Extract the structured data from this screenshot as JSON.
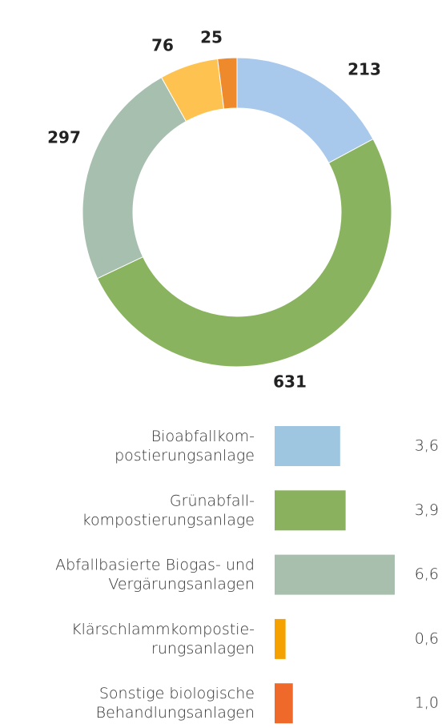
{
  "chart_data": [
    {
      "type": "donut",
      "values": [
        213,
        631,
        297,
        76,
        25
      ],
      "colors": [
        "#a8c8ec",
        "#8ab360",
        "#a7bfae",
        "#fdc24f",
        "#ee8a2c"
      ]
    },
    {
      "type": "hbar",
      "categories": [
        "Bioabfallkom-\npostierungsanlage",
        "Grünabfall-\nkompostierungsanlage",
        "Abfallbasierte Biogas- und\nVergärungsanlagen",
        "Klärschlammkompostie-\nrungsanlagen",
        "Sonstige biologische\nBehandlungsanlagen"
      ],
      "values": [
        3.6,
        3.9,
        6.6,
        0.6,
        1.0
      ],
      "value_labels": [
        "3,6",
        "3,9",
        "6,6",
        "0,6",
        "1,0"
      ],
      "colors": [
        "#9ec6e0",
        "#8ab15e",
        "#a8bfae",
        "#f5a200",
        "#ef6a2a"
      ]
    }
  ]
}
